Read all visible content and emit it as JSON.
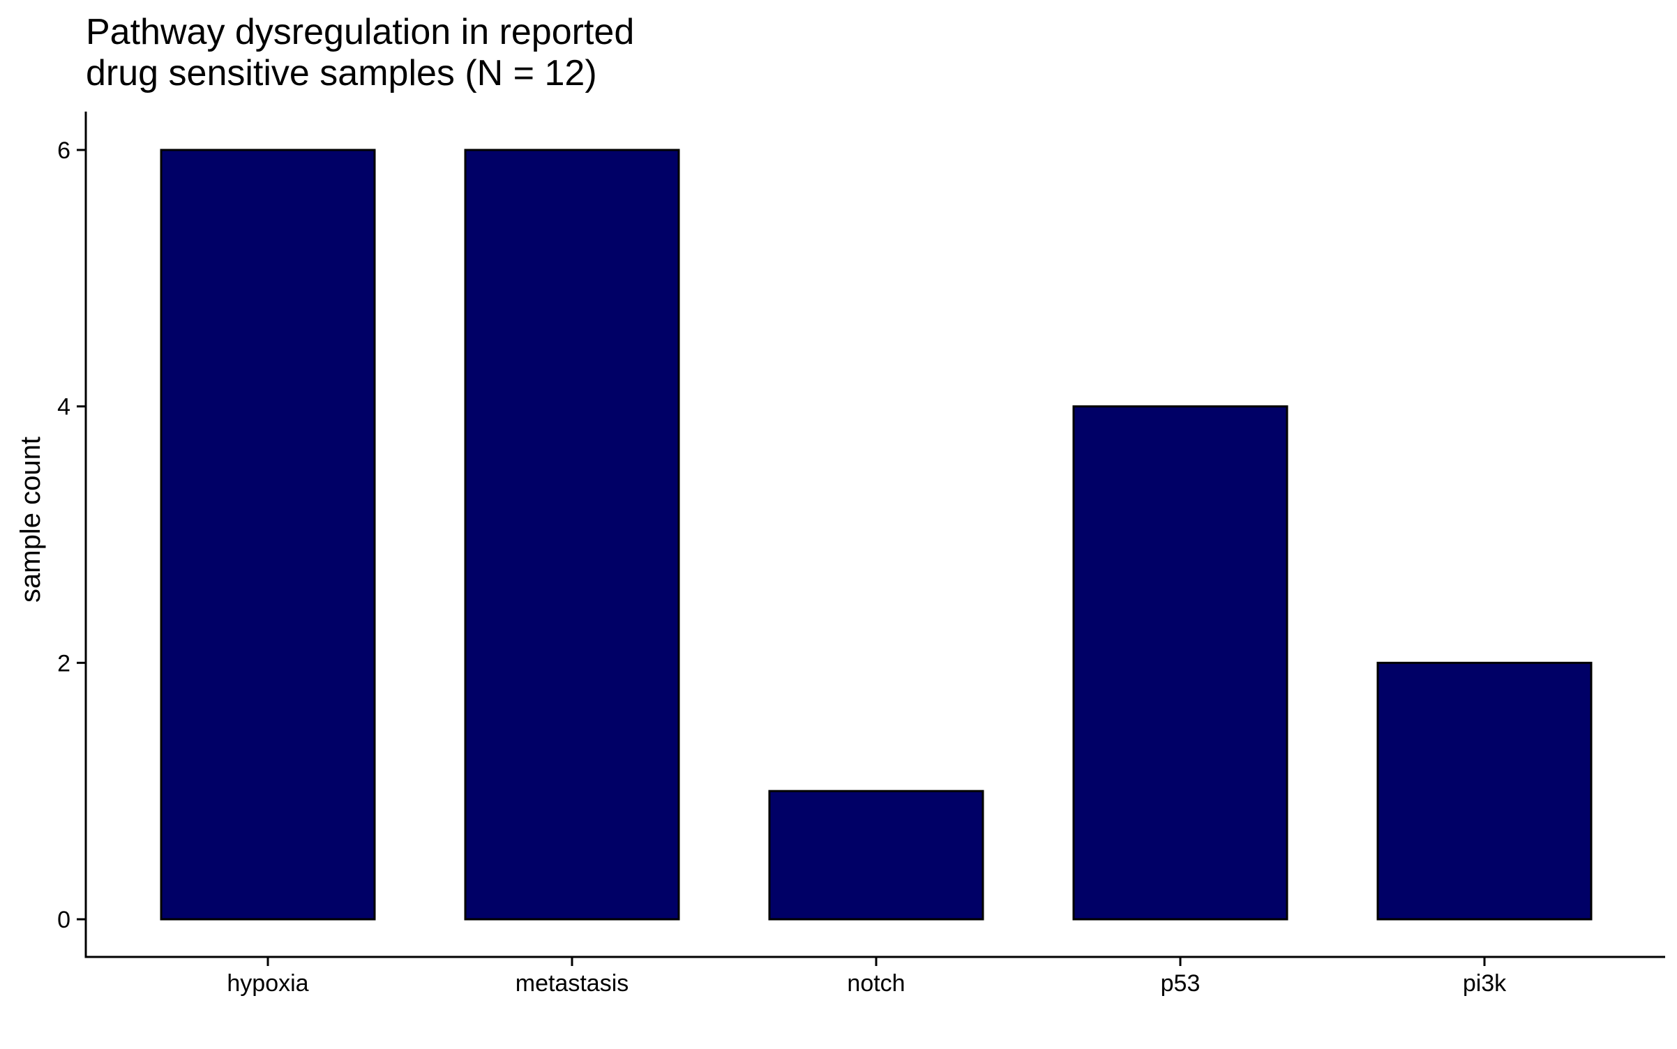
{
  "chart_data": {
    "type": "bar",
    "title": [
      "Pathway dysregulation in reported",
      "drug sensitive samples (N = 12)"
    ],
    "xlabel": "",
    "ylabel": "sample count",
    "categories": [
      "hypoxia",
      "metastasis",
      "notch",
      "p53",
      "pi3k"
    ],
    "values": [
      6,
      6,
      1,
      4,
      2
    ],
    "ylim": [
      0,
      6
    ],
    "yticks": [
      0,
      2,
      4,
      6
    ],
    "grid": false,
    "legend": "none",
    "colors": {
      "bar_fill": "#000066",
      "bar_stroke": "#000000",
      "axis": "#000000"
    }
  }
}
